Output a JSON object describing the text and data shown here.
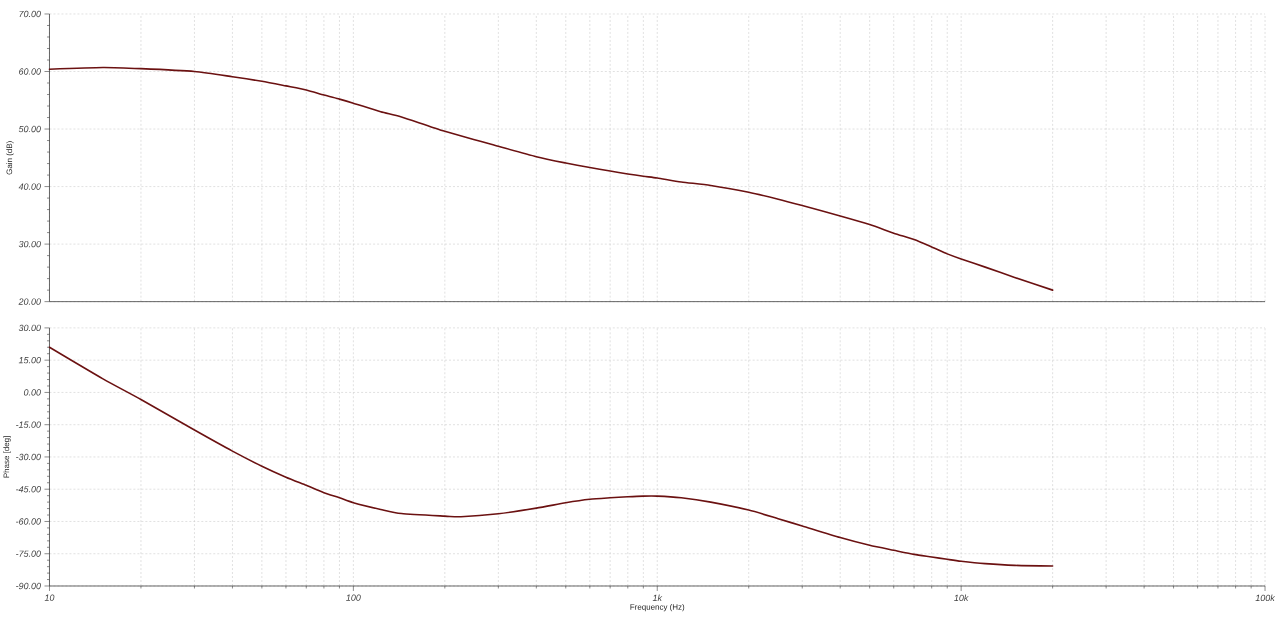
{
  "chart_data": [
    {
      "type": "line",
      "ylabel": "Gain (dB)",
      "x": [
        10,
        15,
        20,
        30,
        40,
        50,
        60,
        70,
        80,
        90,
        100,
        123,
        144,
        200,
        300,
        400,
        500,
        600,
        700,
        800,
        900,
        1000,
        1200,
        1500,
        2000,
        2500,
        3000,
        4000,
        5000,
        6000,
        7000,
        8000,
        9000,
        10000,
        12000,
        15000,
        20000
      ],
      "series": [
        {
          "color": "#6b1111",
          "values": [
            60.4,
            60.7,
            60.5,
            60.0,
            59.1,
            58.3,
            57.5,
            56.8,
            55.9,
            55.2,
            54.5,
            53.0,
            52.1,
            49.6,
            47.0,
            45.2,
            44.1,
            43.3,
            42.7,
            42.2,
            41.8,
            41.5,
            40.8,
            40.2,
            39.0,
            37.8,
            36.7,
            34.9,
            33.4,
            31.9,
            30.8,
            29.5,
            28.3,
            27.4,
            26.0,
            24.2,
            22.0
          ]
        }
      ],
      "xlim": [
        10,
        100000
      ],
      "ylim": [
        20,
        70
      ],
      "yticks": [
        {
          "value": 20,
          "label": "20.00"
        },
        {
          "value": 30,
          "label": "30.00"
        },
        {
          "value": 40,
          "label": "40.00"
        },
        {
          "value": 50,
          "label": "50.00"
        },
        {
          "value": 60,
          "label": "60.00"
        },
        {
          "value": 70,
          "label": "70.00"
        }
      ],
      "log": "x",
      "grid": true,
      "tick_labels": "y"
    },
    {
      "type": "line",
      "xlabel": "Frequency (Hz)",
      "ylabel": "Phase [deg]",
      "x": [
        10,
        15,
        20,
        30,
        40,
        50,
        60,
        70,
        80,
        90,
        100,
        123,
        144,
        200,
        226,
        300,
        400,
        500,
        600,
        700,
        800,
        900,
        1000,
        1200,
        1500,
        2000,
        2500,
        3000,
        4000,
        5000,
        6000,
        7000,
        8000,
        9000,
        10000,
        12000,
        15000,
        20000
      ],
      "series": [
        {
          "color": "#6b1111",
          "values": [
            21.0,
            6.3,
            -3.3,
            -17.5,
            -27.3,
            -34.3,
            -39.4,
            -43.2,
            -46.6,
            -49.0,
            -51.3,
            -54.4,
            -56.3,
            -57.5,
            -57.8,
            -56.4,
            -53.8,
            -51.3,
            -49.7,
            -49.0,
            -48.5,
            -48.2,
            -48.2,
            -49.0,
            -51.0,
            -54.7,
            -58.7,
            -62.1,
            -67.5,
            -71.1,
            -73.4,
            -75.3,
            -76.5,
            -77.6,
            -78.5,
            -79.6,
            -80.4,
            -80.7
          ]
        }
      ],
      "xlim": [
        10,
        100000
      ],
      "xticks": [
        {
          "value": 10,
          "label": "10"
        },
        {
          "value": 100,
          "label": "100"
        },
        {
          "value": 1000,
          "label": "1k"
        },
        {
          "value": 10000,
          "label": "10k"
        },
        {
          "value": 100000,
          "label": "100k"
        }
      ],
      "ylim": [
        -90,
        30
      ],
      "yticks": [
        {
          "value": -90,
          "label": "-90.00"
        },
        {
          "value": -75,
          "label": "-75.00"
        },
        {
          "value": -60,
          "label": "-60.00"
        },
        {
          "value": -45,
          "label": "-45.00"
        },
        {
          "value": -30,
          "label": "-30.00"
        },
        {
          "value": -15,
          "label": "-15.00"
        },
        {
          "value": 0,
          "label": "0.00"
        },
        {
          "value": 15,
          "label": "15.00"
        },
        {
          "value": 30,
          "label": "30.00"
        }
      ],
      "log": "x",
      "grid": true
    }
  ]
}
